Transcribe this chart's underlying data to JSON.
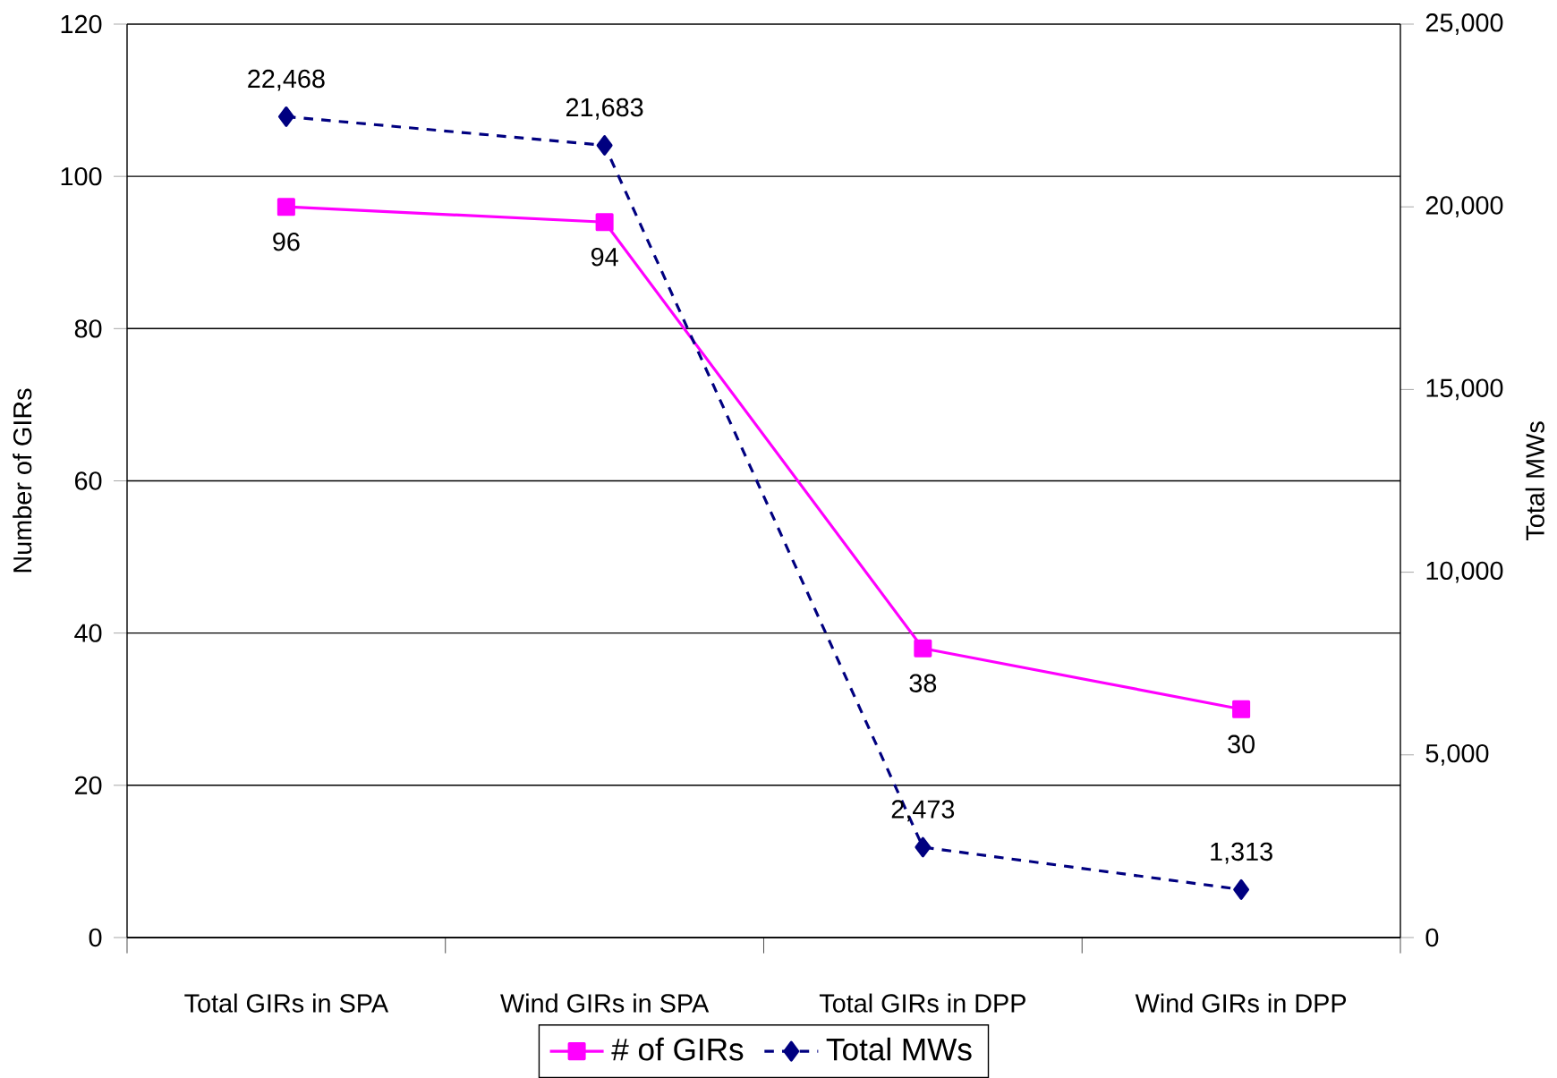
{
  "chart_data": {
    "type": "line",
    "categories": [
      "Total GIRs in SPA",
      "Wind GIRs in SPA",
      "Total GIRs in DPP",
      "Wind GIRs in DPP"
    ],
    "ylabel": "Number of GIRs",
    "y2label": "Total MWs",
    "ylim": [
      0,
      120
    ],
    "yticks": [
      0,
      20,
      40,
      60,
      80,
      100,
      120
    ],
    "y2lim": [
      0,
      25000
    ],
    "y2ticks": [
      0,
      {
        "value": 5000,
        "label": "5,000"
      },
      {
        "value": 10000,
        "label": "10,000"
      },
      {
        "value": 15000,
        "label": "15,000"
      },
      {
        "value": 20000,
        "label": "20,000"
      },
      {
        "value": 25000,
        "label": "25,000"
      }
    ],
    "series": [
      {
        "name": "# of GIRs",
        "color": "#ff00ff",
        "marker": "square",
        "line_style": "solid",
        "values": [
          96,
          94,
          38,
          30
        ],
        "value_labels": [
          "96",
          "94",
          "38",
          "30"
        ]
      },
      {
        "name": "Total MWs",
        "color": "#000080",
        "marker": "diamond",
        "line_style": "dashed",
        "axis": "y2",
        "values": [
          22468,
          21683,
          2473,
          1313
        ],
        "value_labels": [
          "22,468",
          "21,683",
          "2,473",
          "1,313"
        ]
      }
    ],
    "grid": "y",
    "legend": "bottom"
  }
}
